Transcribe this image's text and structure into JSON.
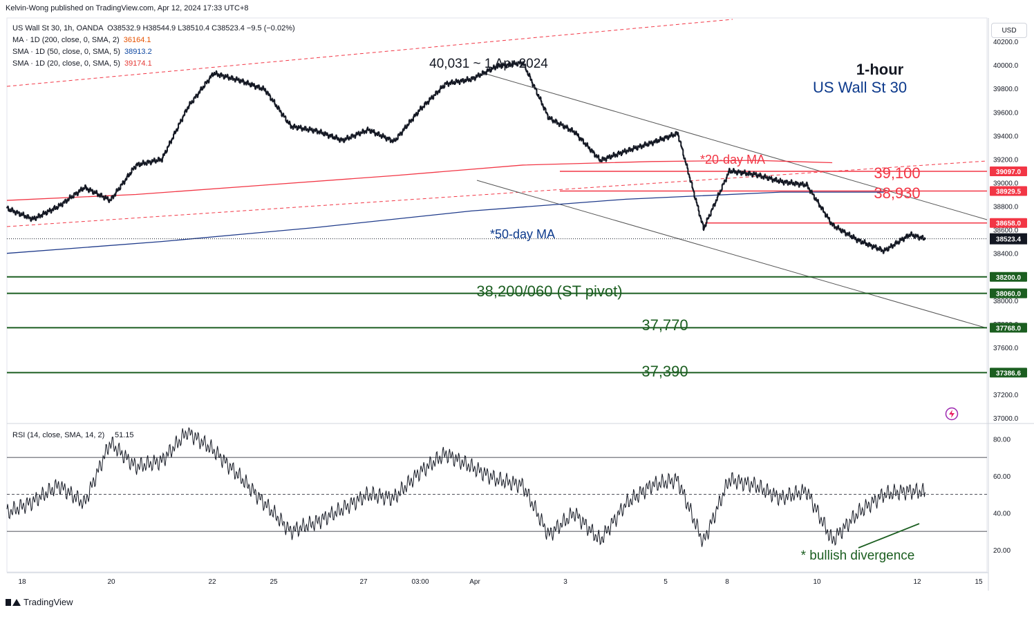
{
  "publisher": "Kelvin-Wong published on TradingView.com, Apr 12, 2024 17:33 UTC+8",
  "legend": {
    "symbol": "US Wall St 30, 1h, OANDA",
    "ohlc": "O38532.9 H38544.9 L38510.4 C38523.4 −9.5 (−0.02%)",
    "ma200": {
      "label": "MA · 1D (200, close, 0, SMA, 2)",
      "value": "36164.1",
      "color": "#e65100"
    },
    "sma50": {
      "label": "SMA · 1D (50, close, 0, SMA, 5)",
      "value": "38913.2",
      "color": "#0d47a1"
    },
    "sma20": {
      "label": "SMA · 1D (20, close, 0, SMA, 5)",
      "value": "39174.1",
      "color": "#e53935"
    }
  },
  "currency_button": "USD",
  "logo_text": "TradingView",
  "colors": {
    "candles": "#131722",
    "ma20": "#f23645",
    "ma50": "#1e3a8a",
    "support": "#1b5e20",
    "resistance": "#f23645",
    "channel_upper": "#f23645",
    "channel": "#555555",
    "rsi": "#131722",
    "annotation_blue": "#0d3a8c",
    "annotation_green": "#1b5e20"
  },
  "chart_data": [
    {
      "type": "line",
      "subtype": "candlestick",
      "title": "1-hour",
      "subtitle": "US Wall St 30",
      "price_axis": {
        "ticks": [
          "40200.0",
          "40000.0",
          "39800.0",
          "39600.0",
          "39400.0",
          "39200.0",
          "39000.0",
          "38800.0",
          "38600.0",
          "38400.0",
          "38200.0",
          "38000.0",
          "37800.0",
          "37600.0",
          "37400.0",
          "37200.0",
          "37000.0"
        ],
        "range": [
          36960,
          40400
        ]
      },
      "time_axis": {
        "tick_labels": [
          "18",
          "20",
          "22",
          "25",
          "27",
          "03:00",
          "Apr",
          "3",
          "5",
          "8",
          "10",
          "12",
          "15"
        ]
      },
      "series": [
        {
          "name": "US Wall St 30 (1h)",
          "x": [
            0,
            10,
            20,
            30,
            40,
            50,
            60,
            70,
            80,
            90,
            100,
            110,
            120,
            130,
            140,
            150,
            160,
            170,
            180,
            190,
            200,
            210,
            220,
            230,
            240,
            250,
            260,
            270,
            280,
            290,
            300,
            310,
            320,
            330,
            340,
            350,
            356
          ],
          "close": [
            38780,
            38690,
            38800,
            38960,
            38850,
            39150,
            39200,
            39640,
            39930,
            39870,
            39790,
            39480,
            39440,
            39360,
            39450,
            39350,
            39620,
            39840,
            39880,
            39990,
            40020,
            39550,
            39430,
            39190,
            39270,
            39340,
            39420,
            38610,
            39100,
            39070,
            39010,
            38980,
            38640,
            38510,
            38420,
            38560,
            38523
          ]
        },
        {
          "name": "*20-day MA",
          "x": [
            0,
            50,
            100,
            150,
            200,
            250,
            290,
            320
          ],
          "values": [
            38850,
            38900,
            38980,
            39060,
            39150,
            39180,
            39190,
            39170
          ]
        },
        {
          "name": "*50-day MA",
          "x": [
            0,
            60,
            120,
            180,
            240,
            300,
            340
          ],
          "values": [
            38400,
            38500,
            38620,
            38760,
            38860,
            38920,
            38920
          ]
        }
      ],
      "horizontal_levels": [
        {
          "label": "39,100",
          "value": 39097.0,
          "tag": "39097.0"
        },
        {
          "label": "38,930",
          "value": 38929.5,
          "tag": "38929.5"
        },
        {
          "label": "",
          "value": 38658.0,
          "tag": "38658.0"
        },
        {
          "label": "38,200/060 (ST pivot)",
          "value": 38200.0,
          "tag": "38200.0"
        },
        {
          "label": "",
          "value": 38060.0,
          "tag": "38060.0"
        },
        {
          "label": "37,770",
          "value": 37768.0,
          "tag": "37768.0"
        },
        {
          "label": "37,390",
          "value": 37386.6,
          "tag": "37386.6"
        }
      ],
      "last_price": "38523.4",
      "annotations": [
        "40,031 ~ 1 Apr 2024",
        "*20-day MA",
        "*50-day MA"
      ]
    },
    {
      "type": "line",
      "title": "RSI (14, close, SMA, 14, 2)",
      "last_value": "51.15",
      "y_ticks": [
        "80.00",
        "60.00",
        "40.00",
        "20.00"
      ],
      "ylim": [
        8,
        88
      ],
      "bands": [
        30,
        50,
        70
      ],
      "x": [
        0,
        10,
        20,
        30,
        40,
        50,
        60,
        70,
        80,
        90,
        100,
        110,
        120,
        130,
        140,
        150,
        160,
        170,
        180,
        190,
        200,
        210,
        220,
        230,
        240,
        250,
        260,
        270,
        280,
        290,
        300,
        310,
        320,
        330,
        340,
        350,
        356
      ],
      "values": [
        40,
        46,
        55,
        45,
        78,
        65,
        68,
        84,
        74,
        60,
        45,
        30,
        35,
        42,
        50,
        48,
        62,
        72,
        65,
        58,
        55,
        28,
        40,
        25,
        45,
        55,
        58,
        24,
        58,
        55,
        48,
        52,
        25,
        40,
        50,
        52,
        51.15
      ],
      "annotations": [
        "* bullish divergence"
      ]
    }
  ]
}
